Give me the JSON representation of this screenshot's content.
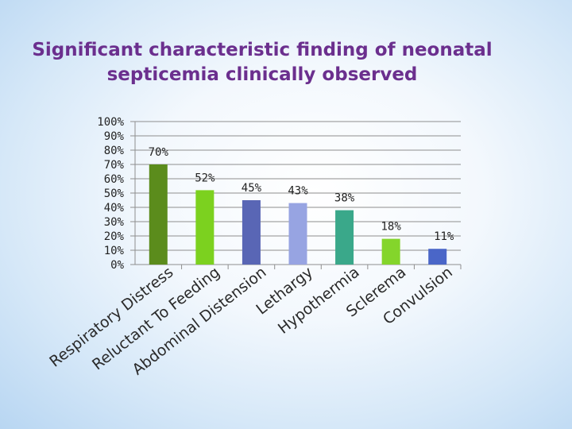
{
  "title": {
    "line1": "Significant characteristic finding of neonatal",
    "line2": "septicemia clinically observed"
  },
  "chart_data": {
    "type": "bar",
    "title": "Significant characteristic finding of neonatal septicemia clinically observed",
    "xlabel": "",
    "ylabel": "",
    "ylim": [
      0,
      100
    ],
    "yticks": [
      "0%",
      "10%",
      "20%",
      "30%",
      "40%",
      "50%",
      "60%",
      "70%",
      "80%",
      "90%",
      "100%"
    ],
    "grid": true,
    "legend": "none",
    "categories": [
      "Respiratory Distress",
      "Reluctant To Feeding",
      "Abdominal Distension",
      "Lethargy",
      "Hypothermia",
      "Sclerema",
      "Convulsion"
    ],
    "values": [
      70,
      52,
      45,
      43,
      38,
      18,
      11
    ],
    "labels": [
      "70%",
      "52%",
      "45%",
      "43%",
      "38%",
      "18%",
      "11%"
    ],
    "colors": [
      "#5b8c1c",
      "#7cd11f",
      "#5966b5",
      "#97a4e2",
      "#3aa88a",
      "#84d52b",
      "#4a66c8"
    ]
  }
}
